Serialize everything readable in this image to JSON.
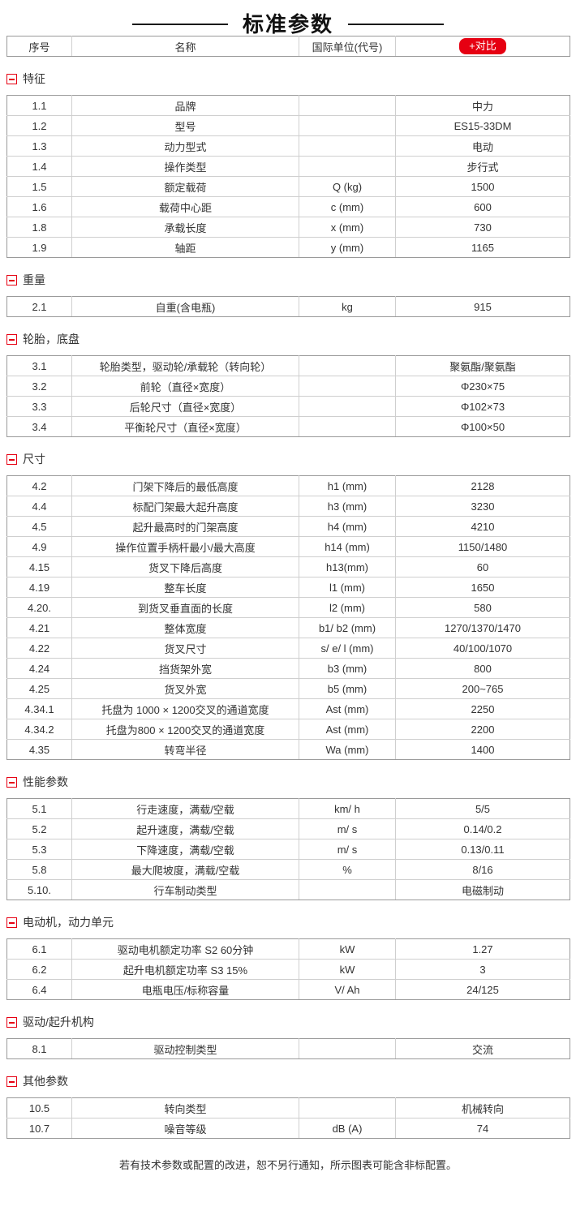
{
  "page": {
    "title": "标准参数",
    "footer_note": "若有技术参数或配置的改进，恕不另行通知，所示图表可能含非标配置。"
  },
  "colors": {
    "accent_red": "#e60012",
    "text_color": "#333333",
    "border_outer": "#9a9a9a",
    "border_inner": "#cfcfcf"
  },
  "header": {
    "col_no": "序号",
    "col_name": "名称",
    "col_unit": "国际单位(代号)",
    "compare_button_label": "+对比"
  },
  "icons": {
    "collapse_icon": "minus-square"
  },
  "sections": [
    {
      "label": "特征",
      "rows": [
        {
          "no": "1.1",
          "name": "品牌",
          "unit": "",
          "value": "中力"
        },
        {
          "no": "1.2",
          "name": "型号",
          "unit": "",
          "value": "ES15-33DM"
        },
        {
          "no": "1.3",
          "name": "动力型式",
          "unit": "",
          "value": "电动"
        },
        {
          "no": "1.4",
          "name": "操作类型",
          "unit": "",
          "value": "步行式"
        },
        {
          "no": "1.5",
          "name": "额定载荷",
          "unit": "Q (kg)",
          "value": "1500"
        },
        {
          "no": "1.6",
          "name": "载荷中心距",
          "unit": "c (mm)",
          "value": "600"
        },
        {
          "no": "1.8",
          "name": "承载长度",
          "unit": "x (mm)",
          "value": "730"
        },
        {
          "no": "1.9",
          "name": "轴距",
          "unit": "y (mm)",
          "value": "1165"
        }
      ]
    },
    {
      "label": "重量",
      "rows": [
        {
          "no": "2.1",
          "name": "自重(含电瓶)",
          "unit": "kg",
          "value": "915"
        }
      ]
    },
    {
      "label": "轮胎，底盘",
      "rows": [
        {
          "no": "3.1",
          "name": "轮胎类型，驱动轮/承载轮（转向轮）",
          "unit": "",
          "value": "聚氨酯/聚氨酯"
        },
        {
          "no": "3.2",
          "name": "前轮（直径×宽度）",
          "unit": "",
          "value": "Φ230×75"
        },
        {
          "no": "3.3",
          "name": "后轮尺寸（直径×宽度）",
          "unit": "",
          "value": "Φ102×73"
        },
        {
          "no": "3.4",
          "name": "平衡轮尺寸（直径×宽度）",
          "unit": "",
          "value": "Φ100×50"
        }
      ]
    },
    {
      "label": "尺寸",
      "rows": [
        {
          "no": "4.2",
          "name": "门架下降后的最低高度",
          "unit": "h1 (mm)",
          "value": "2128"
        },
        {
          "no": "4.4",
          "name": "标配门架最大起升高度",
          "unit": "h3 (mm)",
          "value": "3230"
        },
        {
          "no": "4.5",
          "name": "起升最高时的门架高度",
          "unit": "h4 (mm)",
          "value": "4210"
        },
        {
          "no": "4.9",
          "name": "操作位置手柄杆最小/最大高度",
          "unit": "h14 (mm)",
          "value": "1150/1480"
        },
        {
          "no": "4.15",
          "name": "货叉下降后高度",
          "unit": "h13(mm)",
          "value": "60"
        },
        {
          "no": "4.19",
          "name": "整车长度",
          "unit": "l1 (mm)",
          "value": "1650"
        },
        {
          "no": "4.20.",
          "name": "到货叉垂直面的长度",
          "unit": "l2 (mm)",
          "value": "580"
        },
        {
          "no": "4.21",
          "name": "整体宽度",
          "unit": "b1/ b2 (mm)",
          "value": "1270/1370/1470"
        },
        {
          "no": "4.22",
          "name": "货叉尺寸",
          "unit": "s/ e/ l (mm)",
          "value": "40/100/1070"
        },
        {
          "no": "4.24",
          "name": "挡货架外宽",
          "unit": "b3 (mm)",
          "value": "800"
        },
        {
          "no": "4.25",
          "name": "货叉外宽",
          "unit": "b5 (mm)",
          "value": "200~765"
        },
        {
          "no": "4.34.1",
          "name": "托盘为 1000 × 1200交叉的通道宽度",
          "unit": "Ast (mm)",
          "value": "2250"
        },
        {
          "no": "4.34.2",
          "name": "托盘为800 × 1200交叉的通道宽度",
          "unit": "Ast (mm)",
          "value": "2200"
        },
        {
          "no": "4.35",
          "name": "转弯半径",
          "unit": "Wa (mm)",
          "value": "1400"
        }
      ]
    },
    {
      "label": "性能参数",
      "rows": [
        {
          "no": "5.1",
          "name": "行走速度，满载/空载",
          "unit": "km/ h",
          "value": "5/5"
        },
        {
          "no": "5.2",
          "name": "起升速度，满载/空载",
          "unit": "m/ s",
          "value": "0.14/0.2"
        },
        {
          "no": "5.3",
          "name": "下降速度，满载/空载",
          "unit": "m/ s",
          "value": "0.13/0.11"
        },
        {
          "no": "5.8",
          "name": "最大爬坡度，满载/空载",
          "unit": "%",
          "value": "8/16"
        },
        {
          "no": "5.10.",
          "name": "行车制动类型",
          "unit": "",
          "value": "电磁制动"
        }
      ]
    },
    {
      "label": "电动机，动力单元",
      "rows": [
        {
          "no": "6.1",
          "name": "驱动电机额定功率 S2 60分钟",
          "unit": "kW",
          "value": "1.27"
        },
        {
          "no": "6.2",
          "name": "起升电机额定功率 S3 15%",
          "unit": "kW",
          "value": "3"
        },
        {
          "no": "6.4",
          "name": "电瓶电压/标称容量",
          "unit": "V/ Ah",
          "value": "24/125"
        }
      ]
    },
    {
      "label": "驱动/起升机构",
      "rows": [
        {
          "no": "8.1",
          "name": "驱动控制类型",
          "unit": "",
          "value": "交流"
        }
      ]
    },
    {
      "label": "其他参数",
      "rows": [
        {
          "no": "10.5",
          "name": "转向类型",
          "unit": "",
          "value": "机械转向"
        },
        {
          "no": "10.7",
          "name": "噪音等级",
          "unit": "dB (A)",
          "value": "74"
        }
      ]
    }
  ]
}
